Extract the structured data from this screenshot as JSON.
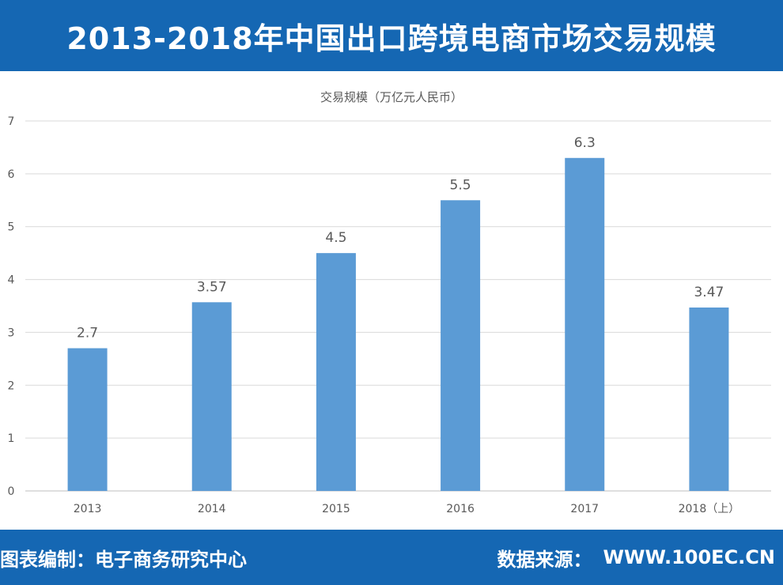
{
  "header": {
    "title": "2013-2018年中国出口跨境电商市场交易规模"
  },
  "chart_data": {
    "type": "bar",
    "title": "交易规模（万亿元人民币）",
    "xlabel": "",
    "ylabel": "",
    "categories": [
      "2013",
      "2014",
      "2015",
      "2016",
      "2017",
      "2018（上）"
    ],
    "series": [
      {
        "values": [
          2.7,
          3.57,
          4.5,
          5.5,
          6.3,
          3.47
        ],
        "data_labels": [
          "2.7",
          "3.57",
          "4.5",
          "5.5",
          "6.3",
          "3.47"
        ]
      }
    ],
    "ylim": [
      0,
      7
    ],
    "yticks": [
      "0",
      "1",
      "2",
      "3",
      "4",
      "5",
      "6",
      "7"
    ],
    "grid": true,
    "legend": "none",
    "bar_color": "#5b9bd5"
  },
  "footer": {
    "left_text": "图表编制：电子商务研究中心",
    "source_label": "数据来源：",
    "source_value": "WWW.100EC.CN"
  },
  "colors": {
    "brand_blue": "#1567b3",
    "bar": "#5b9bd5",
    "grid": "#d9d9d9",
    "text": "#595959"
  }
}
